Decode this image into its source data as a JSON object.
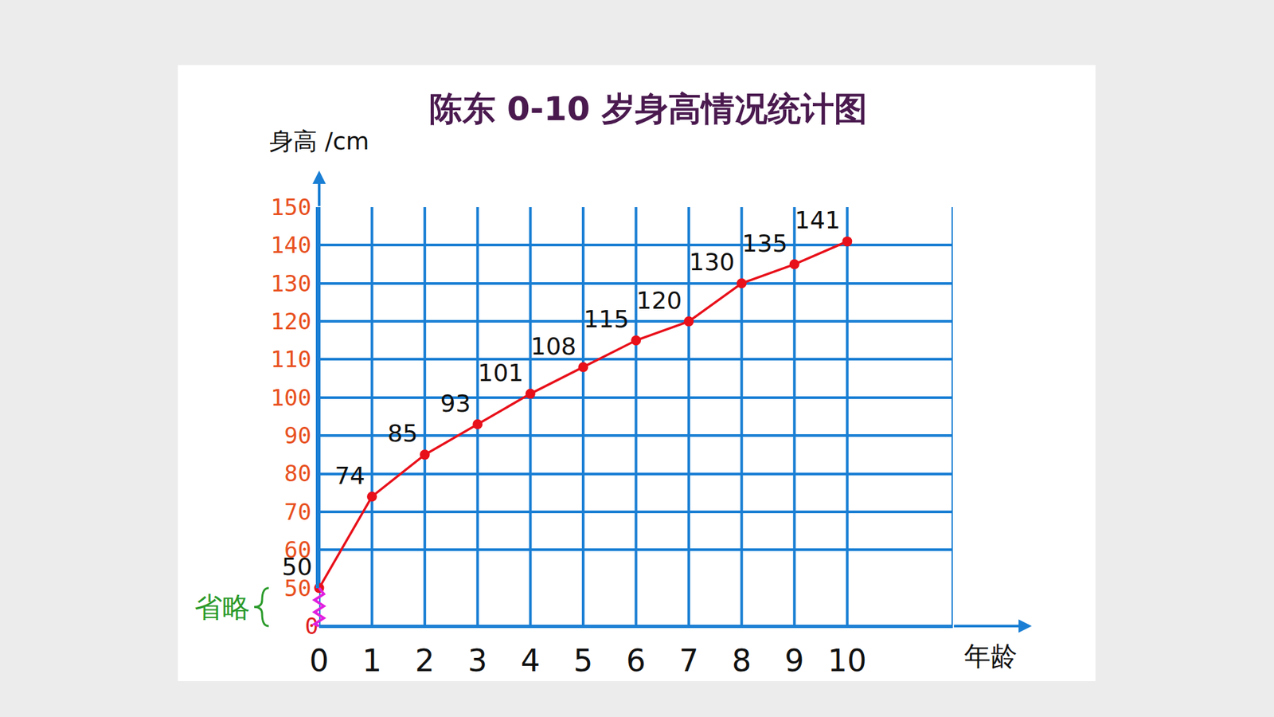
{
  "chart_data": {
    "type": "line",
    "title": "陈东 0-10 岁身高情况统计图",
    "x_label": "年龄",
    "y_label": "身高 /cm",
    "x": [
      0,
      1,
      2,
      3,
      4,
      5,
      6,
      7,
      8,
      9,
      10
    ],
    "values": [
      50,
      74,
      85,
      93,
      101,
      108,
      115,
      120,
      130,
      135,
      141
    ],
    "color": "#e8101a",
    "marker": "circle",
    "xlim": [
      0,
      12
    ],
    "xticks": [
      0,
      1,
      2,
      3,
      4,
      5,
      6,
      7,
      8,
      9,
      10
    ],
    "ylim": [
      0,
      150
    ],
    "yticks": [
      0,
      50,
      60,
      70,
      80,
      90,
      100,
      110,
      120,
      130,
      140,
      150
    ],
    "grid": true,
    "data_labels": true,
    "annotations": [
      "省略"
    ]
  }
}
